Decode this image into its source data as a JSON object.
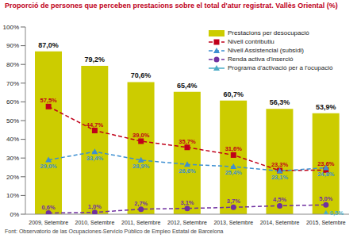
{
  "chart_data": {
    "type": "bar",
    "title": "Proporció de persones que perceben prestacions sobre el total d'atur registrat. Vallès Oriental (%)",
    "source": "Font: Observatorio de las Ocupaciones-Servicio Público de Empleo Estatal de Barcelona",
    "categories": [
      "2009, Setembre",
      "2010, Setembre",
      "2011, Setembre",
      "2012, Setembre",
      "2013, Setembre",
      "2014, Setembre",
      "2015, Setembre"
    ],
    "ylim": [
      0,
      100
    ],
    "yticks": [
      {
        "value": 0,
        "label": "0%"
      },
      {
        "value": 10,
        "label": "10%"
      },
      {
        "value": 20,
        "label": "20%"
      },
      {
        "value": 30,
        "label": "30%"
      },
      {
        "value": 40,
        "label": "40%"
      },
      {
        "value": 50,
        "label": "50%"
      },
      {
        "value": 60,
        "label": "60%"
      },
      {
        "value": 70,
        "label": "70%"
      },
      {
        "value": 80,
        "label": "80%"
      },
      {
        "value": 90,
        "label": "90%"
      },
      {
        "value": 100,
        "label": "100%"
      }
    ],
    "grid": false,
    "legend": "upper right",
    "data_labels": true,
    "series": [
      {
        "name": "Prestacions per desocupació",
        "type": "bar",
        "color": "#cccc00",
        "values": [
          87.0,
          79.2,
          70.6,
          65.4,
          60.7,
          56.3,
          53.9
        ],
        "value_labels": [
          "87,0%",
          "79,2%",
          "70,6%",
          "65,4%",
          "60,7%",
          "56,3%",
          "53,9%"
        ]
      },
      {
        "name": "Nivell contributiu",
        "type": "line",
        "color": "#c0001a",
        "marker": "square",
        "line_style": "dashed",
        "values": [
          57.5,
          44.7,
          39.0,
          35.7,
          31.6,
          23.3,
          23.6
        ],
        "value_labels": [
          "57,5%",
          "44,7%",
          "39,0%",
          "35,7%",
          "31,6%",
          "23,3%",
          "23,6%"
        ]
      },
      {
        "name": "Nivell Assistencial (subsidi)",
        "type": "line",
        "color": "#3d8fd1",
        "marker": "triangle",
        "line_style": "dashed",
        "values": [
          29.0,
          33.4,
          28.9,
          26.6,
          25.4,
          23.1,
          24.8
        ],
        "value_labels": [
          "29,0%",
          "33,4%",
          "28,9%",
          "26,6%",
          "25,4%",
          "23,1%",
          "24,8%"
        ]
      },
      {
        "name": "Renda activa d'inserció",
        "type": "line",
        "color": "#7030a0",
        "marker": "circle",
        "line_style": "dashed",
        "values": [
          0.6,
          1.0,
          2.7,
          3.1,
          3.7,
          4.5,
          5.0
        ],
        "value_labels": [
          "0,6%",
          "1,0%",
          "2,7%",
          "3,1%",
          "3,7%",
          "4,5%",
          "5,0%"
        ]
      },
      {
        "name": "Programa d'activació per a l'ocupació",
        "type": "line",
        "color": "#4bacc6",
        "marker": "triangle",
        "line_style": "solid",
        "values": [
          null,
          null,
          null,
          null,
          null,
          null,
          0.5
        ],
        "value_labels": [
          null,
          null,
          null,
          null,
          null,
          null,
          "0,5%"
        ]
      }
    ]
  }
}
